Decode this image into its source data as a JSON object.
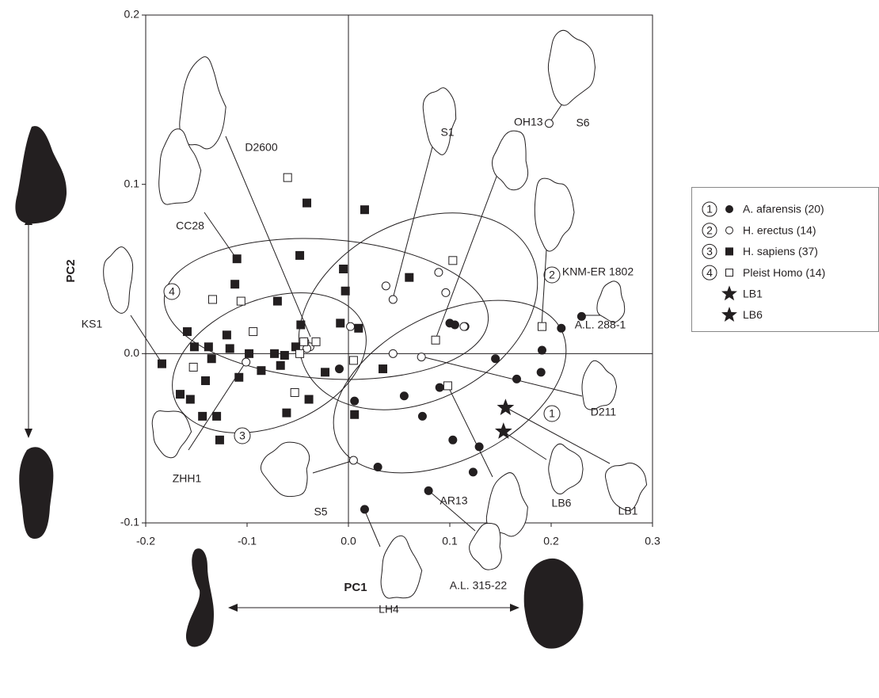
{
  "chart_data": {
    "type": "scatter",
    "xlabel": "PC1",
    "ylabel": "PC2",
    "xlim": [
      -0.2,
      0.3
    ],
    "ylim": [
      -0.1,
      0.2
    ],
    "xticks": [
      -0.2,
      -0.1,
      {
        "value": 0,
        "label": "0.0"
      },
      0.1,
      0.2,
      0.3
    ],
    "yticks": [
      -0.1,
      {
        "value": 0,
        "label": "0.0"
      },
      0.1,
      0.2
    ],
    "series": [
      {
        "name": "A. afarensis (20)",
        "group": "1",
        "marker": "circle",
        "filled": true,
        "color": "#231f20",
        "x": [
          0.1,
          0.105,
          0.115,
          0.145,
          0.166,
          0.191,
          0.19,
          0.21,
          0.23,
          -0.009,
          0.006,
          0.055,
          0.073,
          0.09,
          0.103,
          0.129,
          0.123,
          0.079,
          0.029,
          0.016
        ],
        "values": [
          0.018,
          0.017,
          0.016,
          -0.003,
          -0.015,
          0.002,
          -0.011,
          0.015,
          0.022,
          -0.009,
          -0.028,
          -0.025,
          -0.037,
          -0.02,
          -0.051,
          -0.055,
          -0.07,
          -0.081,
          -0.067,
          -0.092
        ]
      },
      {
        "name": "H. erectus (14)",
        "group": "2",
        "marker": "circle",
        "filled": false,
        "color": "#231f20",
        "x": [
          0.198,
          0.044,
          0.037,
          0.089,
          0.096,
          0.114,
          0.002,
          0.044,
          0.072,
          -0.038,
          -0.041,
          -0.101,
          0.005,
          -0.043
        ],
        "values": [
          0.136,
          0.032,
          0.04,
          0.048,
          0.036,
          0.016,
          0.016,
          0.0,
          -0.002,
          0.004,
          0.003,
          -0.005,
          -0.063,
          0.007
        ]
      },
      {
        "name": "H. sapiens (37)",
        "group": "3",
        "marker": "square",
        "filled": true,
        "color": "#231f20",
        "x": [
          -0.041,
          0.016,
          -0.11,
          -0.048,
          -0.112,
          -0.07,
          -0.047,
          -0.005,
          -0.003,
          -0.008,
          0.01,
          0.06,
          -0.159,
          -0.12,
          -0.138,
          -0.117,
          -0.152,
          -0.184,
          -0.135,
          -0.141,
          -0.166,
          -0.156,
          -0.144,
          -0.13,
          -0.127,
          -0.108,
          -0.098,
          -0.086,
          -0.073,
          -0.067,
          -0.063,
          -0.052,
          -0.061,
          -0.039,
          -0.023,
          0.034,
          0.006
        ],
        "values": [
          0.089,
          0.085,
          0.056,
          0.058,
          0.041,
          0.031,
          0.017,
          0.05,
          0.037,
          0.018,
          0.015,
          0.045,
          0.013,
          0.011,
          0.004,
          0.003,
          0.004,
          -0.006,
          -0.003,
          -0.016,
          -0.024,
          -0.027,
          -0.037,
          -0.037,
          -0.051,
          -0.014,
          0.0,
          -0.01,
          0.0,
          -0.007,
          -0.001,
          0.004,
          -0.035,
          -0.027,
          -0.011,
          -0.009,
          -0.036
        ]
      },
      {
        "name": "Pleist Homo (14)",
        "group": "4",
        "marker": "square",
        "filled": false,
        "color": "#231f20",
        "x": [
          -0.06,
          0.103,
          -0.134,
          -0.106,
          -0.094,
          -0.153,
          -0.044,
          -0.032,
          -0.048,
          -0.053,
          0.005,
          0.086,
          0.191,
          0.098
        ],
        "values": [
          0.104,
          0.055,
          0.032,
          0.031,
          0.013,
          -0.008,
          0.007,
          0.007,
          0.0,
          -0.023,
          -0.004,
          0.008,
          0.016,
          -0.019
        ]
      },
      {
        "name": "LB1",
        "marker": "star",
        "filled": true,
        "color": "#231f20",
        "x": [
          0.155
        ],
        "values": [
          -0.032
        ]
      },
      {
        "name": "LB6",
        "marker": "star",
        "filled": true,
        "color": "#231f20",
        "x": [
          0.153
        ],
        "values": [
          -0.046
        ]
      }
    ],
    "annotations": [
      "D2600",
      "S6",
      "S1",
      "OH13",
      "CC28",
      "KNM-ER 1802",
      "KS1",
      "A.L. 288-1",
      "D211",
      "ZHH1",
      "S5",
      "AR13",
      "LB6",
      "LB1",
      "A.L. 315-22",
      "LH4"
    ]
  }
}
